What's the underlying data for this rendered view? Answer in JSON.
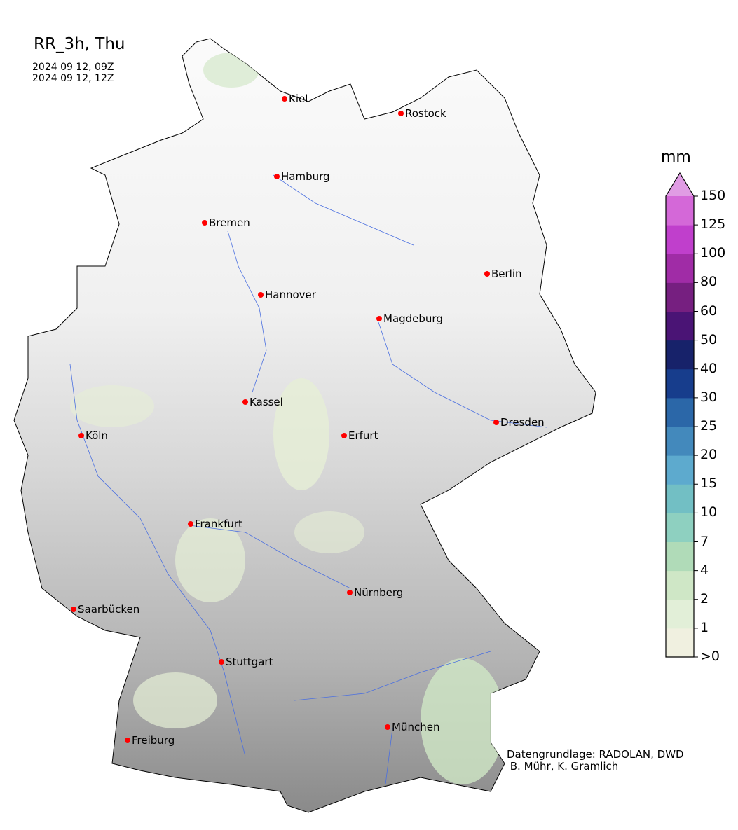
{
  "title": "RR_3h, Thu",
  "valid_from": "2024 09 12, 09Z",
  "valid_to": "2024 09 12, 12Z",
  "colorbar": {
    "unit": "mm",
    "extend": "max",
    "tick_labels": [
      ">0",
      "1",
      "2",
      "4",
      "7",
      "10",
      "15",
      "20",
      "25",
      "30",
      "40",
      "50",
      "60",
      "80",
      "100",
      "125",
      "150"
    ],
    "colors": [
      "#f0f0e0",
      "#e2efd8",
      "#cfe7c6",
      "#b0dbb8",
      "#8ed0c0",
      "#72bfc4",
      "#5daace",
      "#4389bc",
      "#2b67a8",
      "#173d8c",
      "#17226a",
      "#4a1475",
      "#761f80",
      "#a02ca6",
      "#c03fcc",
      "#d468d8"
    ],
    "extend_color": "#e09ce4"
  },
  "cities": [
    {
      "name": "Kiel"
    },
    {
      "name": "Rostock"
    },
    {
      "name": "Hamburg"
    },
    {
      "name": "Bremen"
    },
    {
      "name": "Berlin"
    },
    {
      "name": "Hannover"
    },
    {
      "name": "Magdeburg"
    },
    {
      "name": "Kassel"
    },
    {
      "name": "Dresden"
    },
    {
      "name": "Köln"
    },
    {
      "name": "Erfurt"
    },
    {
      "name": "Frankfurt"
    },
    {
      "name": "Nürnberg"
    },
    {
      "name": "Saarbücken"
    },
    {
      "name": "Stuttgart"
    },
    {
      "name": "München"
    },
    {
      "name": "Freiburg"
    }
  ],
  "city_marker_color": "#ff0000",
  "river_color": "#4a6fe0",
  "credit": "Datengrundlage: RADOLAN, DWD\n B. Mühr, K. Gramlich"
}
